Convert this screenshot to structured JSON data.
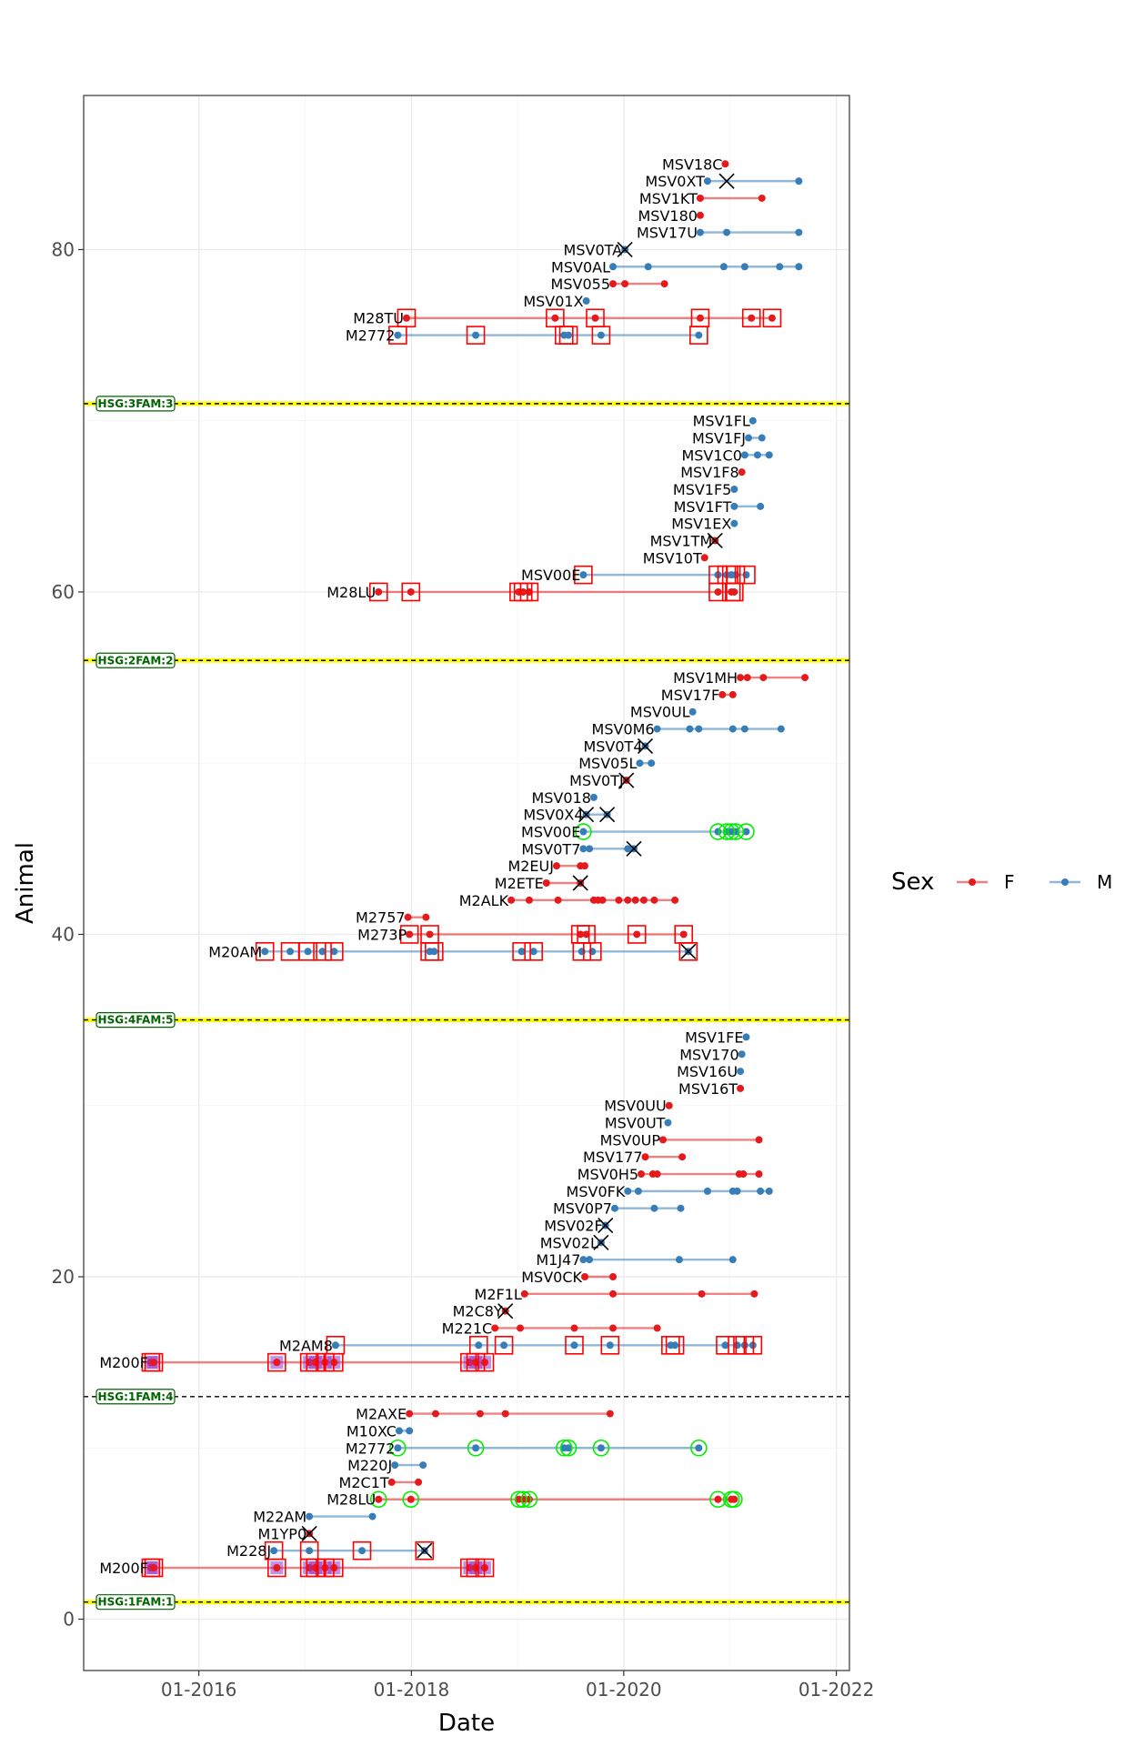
{
  "chart_data": {
    "type": "line",
    "xlabel": "Date",
    "ylabel": "Animal",
    "xlim": [
      "2014-12-01",
      "2022-02-15"
    ],
    "ylim": [
      -3,
      89
    ],
    "x_ticks": [
      "01-2016",
      "01-2018",
      "01-2020",
      "01-2022"
    ],
    "x_tick_dates": [
      "2016-01-01",
      "2018-01-01",
      "2020-01-01",
      "2022-01-01"
    ],
    "y_ticks": [
      0,
      20,
      40,
      60,
      80
    ],
    "grid": true,
    "legend": {
      "title": "Sex",
      "position": "right",
      "entries": [
        {
          "label": "F",
          "color": "#e41a1c"
        },
        {
          "label": "M",
          "color": "#377eb8"
        }
      ]
    },
    "colors": {
      "F": "#e41a1c",
      "M": "#377eb8",
      "box": "#ff0000",
      "ring": "#00ee00",
      "cross": "#000000",
      "group_line_highlight": "#ffff00",
      "group_label": "#006400",
      "purple": "#9933cc"
    },
    "group_lines": [
      {
        "y": 1,
        "label": "HSG:1FAM:1",
        "highlight": true
      },
      {
        "y": 13,
        "label": "HSG:1FAM:4",
        "highlight": false
      },
      {
        "y": 35,
        "label": "HSG:4FAM:5",
        "highlight": true
      },
      {
        "y": 56,
        "label": "HSG:2FAM:2",
        "highlight": true
      },
      {
        "y": 71,
        "label": "HSG:3FAM:3",
        "highlight": true
      }
    ],
    "animals": [
      {
        "y": 3,
        "name": "M200F",
        "sex": "F",
        "dates": [
          "2015-07-20",
          "2015-07-30",
          "2016-09-25",
          "2017-01-15",
          "2017-02-05",
          "2017-03-10",
          "2017-04-10",
          "2018-07-20",
          "2018-08-10",
          "2018-09-10"
        ],
        "boxes": [
          "2015-07-20",
          "2015-07-30",
          "2016-09-25",
          "2017-01-15",
          "2017-02-05",
          "2017-03-10",
          "2017-04-10",
          "2018-07-20",
          "2018-08-10",
          "2018-09-10"
        ],
        "purple": true
      },
      {
        "y": 4,
        "name": "M228J",
        "sex": "M",
        "dates": [
          "2016-09-15",
          "2017-01-15",
          "2017-07-15",
          "2018-02-15"
        ],
        "boxes": [
          "2016-09-15",
          "2017-01-15",
          "2017-07-15",
          "2018-02-15"
        ],
        "crosses": [
          "2018-02-15"
        ]
      },
      {
        "y": 5,
        "name": "M1YP0",
        "sex": "F",
        "dates": [
          "2017-01-15"
        ],
        "crosses": [
          "2017-01-15"
        ]
      },
      {
        "y": 6,
        "name": "M22AM",
        "sex": "M",
        "dates": [
          "2017-01-15",
          "2017-08-20"
        ]
      },
      {
        "y": 7,
        "name": "M28LU",
        "sex": "F",
        "dates": [
          "2017-09-10",
          "2017-12-30",
          "2019-01-05",
          "2019-01-20",
          "2019-02-10",
          "2020-11-20",
          "2021-01-05",
          "2021-01-15"
        ],
        "rings": [
          "2017-09-10",
          "2017-12-30",
          "2019-01-05",
          "2019-01-20",
          "2019-02-10",
          "2020-11-20",
          "2021-01-05",
          "2021-01-15"
        ]
      },
      {
        "y": 8,
        "name": "M2C1T",
        "sex": "F",
        "dates": [
          "2017-10-25",
          "2018-01-25"
        ]
      },
      {
        "y": 9,
        "name": "M220J",
        "sex": "M",
        "dates": [
          "2017-11-05",
          "2018-02-10"
        ]
      },
      {
        "y": 10,
        "name": "M2772",
        "sex": "M",
        "dates": [
          "2017-11-15",
          "2018-08-10",
          "2019-06-10",
          "2019-06-25",
          "2019-10-15",
          "2020-09-15"
        ],
        "rings": [
          "2017-11-15",
          "2018-08-10",
          "2019-06-10",
          "2019-06-25",
          "2019-10-15",
          "2020-09-15"
        ]
      },
      {
        "y": 11,
        "name": "M10XC",
        "sex": "M",
        "dates": [
          "2017-11-20",
          "2017-12-25"
        ]
      },
      {
        "y": 12,
        "name": "M2AXE",
        "sex": "F",
        "dates": [
          "2017-12-25",
          "2018-03-25",
          "2018-08-25",
          "2018-11-20",
          "2019-11-15"
        ]
      },
      {
        "y": 15,
        "name": "M200F",
        "sex": "F",
        "dates": [
          "2015-07-20",
          "2015-07-30",
          "2016-09-25",
          "2017-01-15",
          "2017-02-05",
          "2017-03-10",
          "2017-04-10",
          "2018-07-20",
          "2018-08-10",
          "2018-09-10"
        ],
        "boxes": [
          "2015-07-20",
          "2015-07-30",
          "2016-09-25",
          "2017-01-15",
          "2017-02-05",
          "2017-03-10",
          "2017-04-10",
          "2018-07-20",
          "2018-08-10",
          "2018-09-10"
        ],
        "purple": true
      },
      {
        "y": 16,
        "name": "M2AM8",
        "sex": "M",
        "dates": [
          "2017-04-15",
          "2018-08-20",
          "2018-11-15",
          "2019-07-15",
          "2019-11-15",
          "2020-06-10",
          "2020-06-25",
          "2020-12-15",
          "2021-01-25",
          "2021-02-20",
          "2021-03-20"
        ],
        "boxes": [
          "2017-04-15",
          "2018-08-20",
          "2018-11-15",
          "2019-07-15",
          "2019-11-15",
          "2020-06-10",
          "2020-06-25",
          "2020-12-15",
          "2021-01-25",
          "2021-02-20",
          "2021-03-20"
        ]
      },
      {
        "y": 17,
        "name": "M221C",
        "sex": "F",
        "dates": [
          "2018-10-15",
          "2019-01-10",
          "2019-07-15",
          "2019-11-25",
          "2020-04-25"
        ]
      },
      {
        "y": 18,
        "name": "M2C8Y",
        "sex": "F",
        "dates": [
          "2018-11-20"
        ],
        "crosses": [
          "2018-11-20"
        ]
      },
      {
        "y": 19,
        "name": "M2F1L",
        "sex": "F",
        "dates": [
          "2019-01-25",
          "2019-11-25",
          "2020-09-25",
          "2021-03-25"
        ]
      },
      {
        "y": 20,
        "name": "MSV0CK",
        "sex": "F",
        "dates": [
          "2019-08-20",
          "2019-11-25"
        ]
      },
      {
        "y": 21,
        "name": "M1J47",
        "sex": "M",
        "dates": [
          "2019-08-15",
          "2019-09-05",
          "2020-07-10",
          "2021-01-10"
        ]
      },
      {
        "y": 22,
        "name": "MSV02L",
        "sex": "M",
        "dates": [
          "2019-10-15"
        ],
        "crosses": [
          "2019-10-15"
        ]
      },
      {
        "y": 23,
        "name": "MSV02F",
        "sex": "M",
        "dates": [
          "2019-10-30"
        ],
        "crosses": [
          "2019-10-30"
        ]
      },
      {
        "y": 24,
        "name": "MSV0P7",
        "sex": "M",
        "dates": [
          "2019-12-01",
          "2020-04-15",
          "2020-07-15"
        ]
      },
      {
        "y": 25,
        "name": "MSV0FK",
        "sex": "M",
        "dates": [
          "2020-01-15",
          "2020-02-20",
          "2020-10-15",
          "2021-01-10",
          "2021-01-25",
          "2021-04-15",
          "2021-05-15"
        ]
      },
      {
        "y": 26,
        "name": "MSV0H5",
        "sex": "F",
        "dates": [
          "2020-03-01",
          "2020-04-10",
          "2020-04-25",
          "2021-02-01",
          "2021-02-15",
          "2021-04-10"
        ]
      },
      {
        "y": 27,
        "name": "MSV177",
        "sex": "F",
        "dates": [
          "2020-03-15",
          "2020-07-20"
        ]
      },
      {
        "y": 28,
        "name": "MSV0UP",
        "sex": "F",
        "dates": [
          "2020-05-15",
          "2021-04-10"
        ]
      },
      {
        "y": 29,
        "name": "MSV0UT",
        "sex": "M",
        "dates": [
          "2020-06-01"
        ]
      },
      {
        "y": 30,
        "name": "MSV0UU",
        "sex": "F",
        "dates": [
          "2020-06-05"
        ]
      },
      {
        "y": 31,
        "name": "MSV16T",
        "sex": "F",
        "dates": [
          "2021-02-05"
        ]
      },
      {
        "y": 32,
        "name": "MSV16U",
        "sex": "M",
        "dates": [
          "2021-02-05"
        ]
      },
      {
        "y": 33,
        "name": "MSV170",
        "sex": "M",
        "dates": [
          "2021-02-10"
        ]
      },
      {
        "y": 34,
        "name": "MSV1FE",
        "sex": "M",
        "dates": [
          "2021-02-25"
        ]
      },
      {
        "y": 39,
        "name": "M20AM",
        "sex": "M",
        "dates": [
          "2016-08-15",
          "2016-11-10",
          "2017-01-10",
          "2017-03-01",
          "2017-04-10",
          "2018-03-05",
          "2018-03-20",
          "2019-01-15",
          "2019-02-25",
          "2019-08-10",
          "2019-09-15",
          "2020-08-10"
        ],
        "boxes": [
          "2016-08-15",
          "2016-11-10",
          "2017-01-10",
          "2017-03-01",
          "2017-04-10",
          "2018-03-05",
          "2018-03-20",
          "2019-01-15",
          "2019-02-25",
          "2019-08-10",
          "2019-09-15",
          "2020-08-10"
        ],
        "crosses": [
          "2020-08-10"
        ]
      },
      {
        "y": 40,
        "name": "M273P",
        "sex": "F",
        "dates": [
          "2017-12-25",
          "2018-03-05",
          "2019-08-05",
          "2019-08-25",
          "2020-02-15",
          "2020-07-25"
        ],
        "boxes": [
          "2017-12-25",
          "2018-03-05",
          "2019-08-05",
          "2019-08-25",
          "2020-02-15",
          "2020-07-25"
        ]
      },
      {
        "y": 41,
        "name": "M2757",
        "sex": "F",
        "dates": [
          "2017-12-20",
          "2018-02-20"
        ]
      },
      {
        "y": 42,
        "name": "M2ALK",
        "sex": "F",
        "dates": [
          "2018-12-10",
          "2019-02-10",
          "2019-05-20",
          "2019-09-20",
          "2019-10-05",
          "2019-10-20",
          "2019-12-15",
          "2020-01-15",
          "2020-02-10",
          "2020-03-10",
          "2020-04-15",
          "2020-06-25"
        ]
      },
      {
        "y": 43,
        "name": "M2ETE",
        "sex": "F",
        "dates": [
          "2019-04-10",
          "2019-08-05"
        ],
        "crosses": [
          "2019-08-05"
        ]
      },
      {
        "y": 44,
        "name": "M2EUJ",
        "sex": "F",
        "dates": [
          "2019-05-15",
          "2019-08-05",
          "2019-08-20"
        ]
      },
      {
        "y": 45,
        "name": "MSV0T7",
        "sex": "M",
        "dates": [
          "2019-08-15",
          "2019-09-05",
          "2020-01-15",
          "2020-02-05"
        ],
        "crosses": [
          "2020-02-05"
        ]
      },
      {
        "y": 46,
        "name": "MSV00E",
        "sex": "M",
        "dates": [
          "2019-08-15",
          "2020-11-20",
          "2020-12-20",
          "2021-01-05",
          "2021-01-20",
          "2021-02-25"
        ],
        "rings": [
          "2019-08-15",
          "2020-11-20",
          "2020-12-20",
          "2021-01-05",
          "2021-01-20",
          "2021-02-25"
        ]
      },
      {
        "y": 47,
        "name": "MSV0X4",
        "sex": "M",
        "dates": [
          "2019-08-25",
          "2019-11-05"
        ],
        "crosses": [
          "2019-08-25",
          "2019-11-05"
        ]
      },
      {
        "y": 48,
        "name": "MSV018",
        "sex": "M",
        "dates": [
          "2019-09-20"
        ]
      },
      {
        "y": 49,
        "name": "MSV0TJ",
        "sex": "F",
        "dates": [
          "2020-01-10"
        ],
        "crosses": [
          "2020-01-10"
        ]
      },
      {
        "y": 50,
        "name": "MSV05L",
        "sex": "M",
        "dates": [
          "2020-02-25",
          "2020-04-05"
        ]
      },
      {
        "y": 51,
        "name": "MSV0T4",
        "sex": "M",
        "dates": [
          "2020-03-15"
        ],
        "crosses": [
          "2020-03-15"
        ]
      },
      {
        "y": 52,
        "name": "MSV0M6",
        "sex": "M",
        "dates": [
          "2020-04-25",
          "2020-08-15",
          "2020-09-15",
          "2021-01-10",
          "2021-02-20",
          "2021-06-25"
        ]
      },
      {
        "y": 53,
        "name": "MSV0UL",
        "sex": "M",
        "dates": [
          "2020-08-25"
        ]
      },
      {
        "y": 54,
        "name": "MSV17F",
        "sex": "F",
        "dates": [
          "2020-12-05",
          "2021-01-10"
        ]
      },
      {
        "y": 55,
        "name": "MSV1MH",
        "sex": "F",
        "dates": [
          "2021-02-05",
          "2021-03-01",
          "2021-04-25",
          "2021-09-15"
        ]
      },
      {
        "y": 60,
        "name": "M28LU",
        "sex": "F",
        "dates": [
          "2017-09-10",
          "2017-12-30",
          "2019-01-05",
          "2019-01-20",
          "2019-02-10",
          "2020-11-20",
          "2021-01-05",
          "2021-01-15"
        ],
        "boxes": [
          "2017-09-10",
          "2017-12-30",
          "2019-01-05",
          "2019-01-20",
          "2019-02-10",
          "2020-11-20",
          "2021-01-05",
          "2021-01-15"
        ]
      },
      {
        "y": 61,
        "name": "MSV00E",
        "sex": "M",
        "dates": [
          "2019-08-15",
          "2020-11-20",
          "2020-12-20",
          "2021-01-05",
          "2021-01-20",
          "2021-02-25"
        ],
        "boxes": [
          "2019-08-15",
          "2020-11-20",
          "2020-12-20",
          "2021-01-05",
          "2021-01-20",
          "2021-02-25"
        ]
      },
      {
        "y": 62,
        "name": "MSV10T",
        "sex": "F",
        "dates": [
          "2020-10-05"
        ]
      },
      {
        "y": 63,
        "name": "MSV1TM",
        "sex": "F",
        "dates": [
          "2020-11-10"
        ],
        "crosses": [
          "2020-11-10"
        ]
      },
      {
        "y": 64,
        "name": "MSV1EX",
        "sex": "M",
        "dates": [
          "2021-01-15"
        ]
      },
      {
        "y": 65,
        "name": "MSV1FT",
        "sex": "M",
        "dates": [
          "2021-01-15",
          "2021-04-15"
        ]
      },
      {
        "y": 66,
        "name": "MSV1F5",
        "sex": "M",
        "dates": [
          "2021-01-15"
        ]
      },
      {
        "y": 67,
        "name": "MSV1F8",
        "sex": "F",
        "dates": [
          "2021-02-10"
        ]
      },
      {
        "y": 68,
        "name": "MSV1C0",
        "sex": "M",
        "dates": [
          "2021-02-20",
          "2021-04-05",
          "2021-05-15"
        ]
      },
      {
        "y": 69,
        "name": "MSV1FJ",
        "sex": "M",
        "dates": [
          "2021-03-05",
          "2021-04-20"
        ]
      },
      {
        "y": 70,
        "name": "MSV1FL",
        "sex": "M",
        "dates": [
          "2021-03-20"
        ]
      },
      {
        "y": 75,
        "name": "M2772",
        "sex": "M",
        "dates": [
          "2017-11-15",
          "2018-08-10",
          "2019-06-10",
          "2019-06-25",
          "2019-10-15",
          "2020-09-15"
        ],
        "boxes": [
          "2017-11-15",
          "2018-08-10",
          "2019-06-10",
          "2019-06-25",
          "2019-10-15",
          "2020-09-15"
        ]
      },
      {
        "y": 76,
        "name": "M28TU",
        "sex": "F",
        "dates": [
          "2017-12-15",
          "2019-05-10",
          "2019-09-25",
          "2020-09-20",
          "2021-03-15",
          "2021-05-25"
        ],
        "boxes": [
          "2017-12-15",
          "2019-05-10",
          "2019-09-25",
          "2020-09-20",
          "2021-03-15",
          "2021-05-25"
        ]
      },
      {
        "y": 77,
        "name": "MSV01X",
        "sex": "M",
        "dates": [
          "2019-08-25"
        ]
      },
      {
        "y": 78,
        "name": "MSV055",
        "sex": "F",
        "dates": [
          "2019-11-25",
          "2020-01-05",
          "2020-05-20"
        ]
      },
      {
        "y": 79,
        "name": "MSV0AL",
        "sex": "M",
        "dates": [
          "2019-11-25",
          "2020-03-25",
          "2020-12-10",
          "2021-02-20",
          "2021-06-20",
          "2021-08-25"
        ]
      },
      {
        "y": 80,
        "name": "MSV0TA",
        "sex": "M",
        "dates": [
          "2020-01-05"
        ],
        "crosses": [
          "2020-01-05"
        ]
      },
      {
        "y": 81,
        "name": "MSV17U",
        "sex": "M",
        "dates": [
          "2020-09-20",
          "2020-12-20",
          "2021-08-25"
        ]
      },
      {
        "y": 82,
        "name": "MSV180",
        "sex": "F",
        "dates": [
          "2020-09-20"
        ]
      },
      {
        "y": 83,
        "name": "MSV1KT",
        "sex": "F",
        "dates": [
          "2020-09-20",
          "2021-04-20"
        ]
      },
      {
        "y": 84,
        "name": "MSV0XT",
        "sex": "M",
        "dates": [
          "2020-10-15",
          "2021-08-25"
        ],
        "crosses": [
          "2020-12-20"
        ]
      },
      {
        "y": 85,
        "name": "MSV18C",
        "sex": "F",
        "dates": [
          "2020-12-15"
        ]
      }
    ]
  }
}
